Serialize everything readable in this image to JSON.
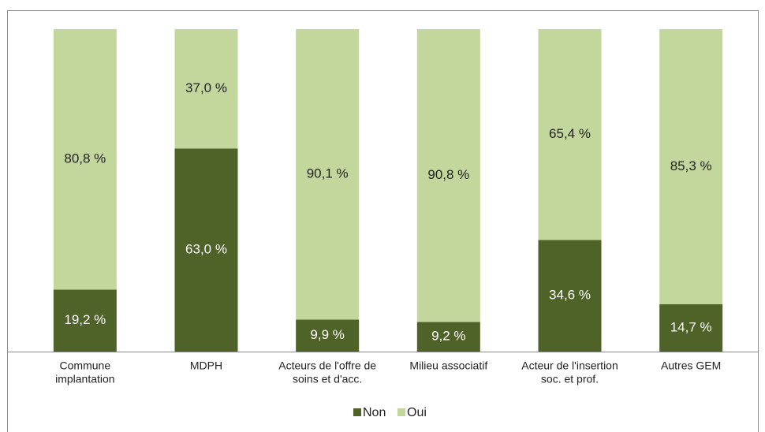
{
  "chart_data": {
    "type": "stacked_bar",
    "categories": [
      [
        "Commune",
        "implantation"
      ],
      [
        "MDPH"
      ],
      [
        "Acteurs de l'offre de",
        "soins et d'acc."
      ],
      [
        "Milieu associatif"
      ],
      [
        "Acteur de l'insertion",
        "soc. et prof."
      ],
      [
        "Autres GEM"
      ]
    ],
    "series": [
      {
        "name": "Non",
        "color": "#4f6228",
        "values": [
          19.2,
          63.0,
          9.9,
          9.2,
          34.6,
          14.7
        ],
        "value_labels": [
          "19,2 %",
          "63,0 %",
          "9,9 %",
          "9,2 %",
          "34,6 %",
          "14,7 %"
        ]
      },
      {
        "name": "Oui",
        "color": "#c3d69b",
        "values": [
          80.8,
          37.0,
          90.1,
          90.8,
          65.4,
          85.3
        ],
        "value_labels": [
          "80,8 %",
          "37,0 %",
          "90,1 %",
          "90,8 %",
          "65,4 %",
          "85,3 %"
        ]
      }
    ],
    "ylim": [
      0,
      100
    ],
    "legend": "bottom"
  }
}
